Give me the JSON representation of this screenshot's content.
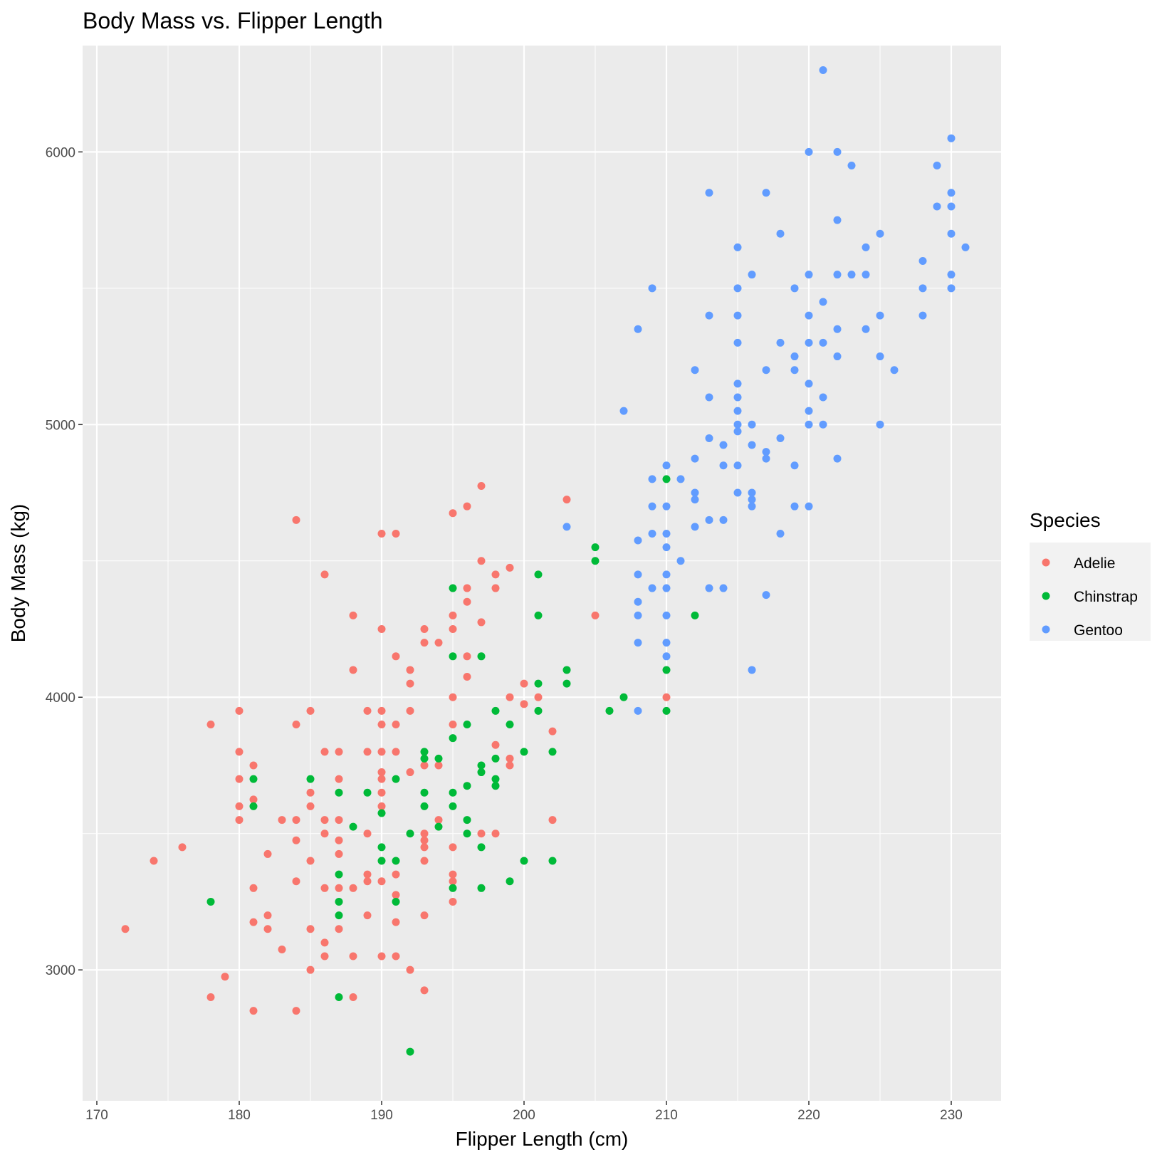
{
  "chart_data": {
    "type": "scatter",
    "title": "Body Mass vs. Flipper Length",
    "xlabel": "Flipper Length (cm)",
    "ylabel": "Body Mass (kg)",
    "xlim": [
      169,
      233.5
    ],
    "ylim": [
      2520,
      6390
    ],
    "x_ticks": [
      170,
      180,
      190,
      200,
      210,
      220,
      230
    ],
    "y_ticks": [
      3000,
      4000,
      5000,
      6000
    ],
    "grid": true,
    "legend_title": "Species",
    "legend_position": "right",
    "series": [
      {
        "name": "Adelie",
        "color": "#F8766D",
        "points": [
          [
            172,
            3150
          ],
          [
            174,
            3400
          ],
          [
            176,
            3450
          ],
          [
            178,
            2900
          ],
          [
            178,
            3900
          ],
          [
            179,
            2975
          ],
          [
            180,
            3550
          ],
          [
            180,
            3600
          ],
          [
            180,
            3700
          ],
          [
            180,
            3800
          ],
          [
            180,
            3950
          ],
          [
            181,
            2850
          ],
          [
            181,
            3175
          ],
          [
            181,
            3300
          ],
          [
            181,
            3625
          ],
          [
            181,
            3750
          ],
          [
            182,
            3150
          ],
          [
            182,
            3200
          ],
          [
            182,
            3425
          ],
          [
            183,
            3075
          ],
          [
            183,
            3550
          ],
          [
            184,
            2850
          ],
          [
            184,
            3325
          ],
          [
            184,
            3475
          ],
          [
            184,
            3550
          ],
          [
            184,
            3900
          ],
          [
            184,
            4650
          ],
          [
            185,
            3000
          ],
          [
            185,
            3150
          ],
          [
            185,
            3400
          ],
          [
            185,
            3600
          ],
          [
            185,
            3650
          ],
          [
            185,
            3950
          ],
          [
            186,
            3050
          ],
          [
            186,
            3100
          ],
          [
            186,
            3300
          ],
          [
            186,
            3500
          ],
          [
            186,
            3550
          ],
          [
            186,
            3800
          ],
          [
            186,
            4450
          ],
          [
            187,
            3150
          ],
          [
            187,
            3300
          ],
          [
            187,
            3425
          ],
          [
            187,
            3475
          ],
          [
            187,
            3550
          ],
          [
            187,
            3700
          ],
          [
            187,
            3800
          ],
          [
            188,
            2900
          ],
          [
            188,
            3050
          ],
          [
            188,
            3300
          ],
          [
            188,
            4100
          ],
          [
            188,
            4300
          ],
          [
            189,
            3200
          ],
          [
            189,
            3325
          ],
          [
            189,
            3350
          ],
          [
            189,
            3500
          ],
          [
            189,
            3800
          ],
          [
            189,
            3950
          ],
          [
            190,
            3050
          ],
          [
            190,
            3325
          ],
          [
            190,
            3600
          ],
          [
            190,
            3650
          ],
          [
            190,
            3700
          ],
          [
            190,
            3725
          ],
          [
            190,
            3800
          ],
          [
            190,
            3900
          ],
          [
            190,
            3950
          ],
          [
            190,
            4250
          ],
          [
            190,
            4600
          ],
          [
            191,
            3050
          ],
          [
            191,
            3175
          ],
          [
            191,
            3275
          ],
          [
            191,
            3350
          ],
          [
            191,
            3800
          ],
          [
            191,
            3900
          ],
          [
            191,
            4150
          ],
          [
            191,
            4600
          ],
          [
            192,
            3000
          ],
          [
            192,
            3725
          ],
          [
            192,
            3950
          ],
          [
            192,
            4050
          ],
          [
            192,
            4100
          ],
          [
            193,
            2925
          ],
          [
            193,
            3200
          ],
          [
            193,
            3400
          ],
          [
            193,
            3450
          ],
          [
            193,
            3475
          ],
          [
            193,
            3500
          ],
          [
            193,
            3750
          ],
          [
            193,
            4200
          ],
          [
            193,
            4250
          ],
          [
            194,
            3550
          ],
          [
            194,
            3750
          ],
          [
            194,
            4200
          ],
          [
            195,
            3250
          ],
          [
            195,
            3325
          ],
          [
            195,
            3350
          ],
          [
            195,
            3450
          ],
          [
            195,
            3900
          ],
          [
            195,
            4000
          ],
          [
            195,
            4250
          ],
          [
            195,
            4300
          ],
          [
            195,
            4675
          ],
          [
            196,
            4075
          ],
          [
            196,
            4150
          ],
          [
            196,
            4350
          ],
          [
            196,
            4400
          ],
          [
            196,
            4700
          ],
          [
            197,
            3500
          ],
          [
            197,
            4275
          ],
          [
            197,
            4500
          ],
          [
            197,
            4775
          ],
          [
            198,
            3500
          ],
          [
            198,
            3825
          ],
          [
            198,
            4400
          ],
          [
            198,
            4450
          ],
          [
            199,
            3750
          ],
          [
            199,
            3775
          ],
          [
            199,
            4000
          ],
          [
            199,
            4475
          ],
          [
            200,
            3975
          ],
          [
            200,
            4050
          ],
          [
            201,
            4000
          ],
          [
            202,
            3550
          ],
          [
            202,
            3875
          ],
          [
            203,
            4725
          ],
          [
            205,
            4300
          ],
          [
            210,
            4000
          ]
        ]
      },
      {
        "name": "Chinstrap",
        "color": "#00BA38",
        "points": [
          [
            178,
            3250
          ],
          [
            181,
            3600
          ],
          [
            181,
            3700
          ],
          [
            185,
            3700
          ],
          [
            187,
            2900
          ],
          [
            187,
            3200
          ],
          [
            187,
            3250
          ],
          [
            187,
            3350
          ],
          [
            187,
            3650
          ],
          [
            188,
            3525
          ],
          [
            189,
            3650
          ],
          [
            190,
            3400
          ],
          [
            190,
            3450
          ],
          [
            190,
            3575
          ],
          [
            191,
            3250
          ],
          [
            191,
            3400
          ],
          [
            191,
            3700
          ],
          [
            192,
            2700
          ],
          [
            192,
            3500
          ],
          [
            193,
            3600
          ],
          [
            193,
            3650
          ],
          [
            193,
            3775
          ],
          [
            193,
            3800
          ],
          [
            194,
            3525
          ],
          [
            194,
            3775
          ],
          [
            195,
            3300
          ],
          [
            195,
            3600
          ],
          [
            195,
            3650
          ],
          [
            195,
            3850
          ],
          [
            195,
            4150
          ],
          [
            195,
            4400
          ],
          [
            196,
            3500
          ],
          [
            196,
            3550
          ],
          [
            196,
            3675
          ],
          [
            196,
            3900
          ],
          [
            197,
            3300
          ],
          [
            197,
            3450
          ],
          [
            197,
            3725
          ],
          [
            197,
            3750
          ],
          [
            197,
            4150
          ],
          [
            198,
            3675
          ],
          [
            198,
            3700
          ],
          [
            198,
            3775
          ],
          [
            198,
            3950
          ],
          [
            199,
            3325
          ],
          [
            199,
            3900
          ],
          [
            200,
            3400
          ],
          [
            200,
            3800
          ],
          [
            201,
            3950
          ],
          [
            201,
            4050
          ],
          [
            201,
            4300
          ],
          [
            201,
            4450
          ],
          [
            202,
            3400
          ],
          [
            202,
            3800
          ],
          [
            203,
            4050
          ],
          [
            203,
            4100
          ],
          [
            205,
            4500
          ],
          [
            205,
            4550
          ],
          [
            206,
            3950
          ],
          [
            207,
            4000
          ],
          [
            210,
            3950
          ],
          [
            210,
            4100
          ],
          [
            210,
            4800
          ],
          [
            212,
            4300
          ]
        ]
      },
      {
        "name": "Gentoo",
        "color": "#619CFF",
        "points": [
          [
            203,
            4625
          ],
          [
            207,
            5050
          ],
          [
            208,
            3950
          ],
          [
            208,
            4200
          ],
          [
            208,
            4300
          ],
          [
            208,
            4350
          ],
          [
            208,
            4450
          ],
          [
            208,
            4575
          ],
          [
            208,
            5350
          ],
          [
            209,
            4400
          ],
          [
            209,
            4600
          ],
          [
            209,
            4700
          ],
          [
            209,
            4800
          ],
          [
            209,
            5500
          ],
          [
            210,
            4150
          ],
          [
            210,
            4200
          ],
          [
            210,
            4300
          ],
          [
            210,
            4400
          ],
          [
            210,
            4450
          ],
          [
            210,
            4550
          ],
          [
            210,
            4600
          ],
          [
            210,
            4700
          ],
          [
            210,
            4850
          ],
          [
            211,
            4500
          ],
          [
            211,
            4800
          ],
          [
            212,
            4625
          ],
          [
            212,
            4725
          ],
          [
            212,
            4750
          ],
          [
            212,
            4875
          ],
          [
            212,
            5200
          ],
          [
            213,
            4400
          ],
          [
            213,
            4650
          ],
          [
            213,
            4950
          ],
          [
            213,
            5100
          ],
          [
            213,
            5400
          ],
          [
            213,
            5850
          ],
          [
            214,
            4400
          ],
          [
            214,
            4650
          ],
          [
            214,
            4850
          ],
          [
            214,
            4925
          ],
          [
            215,
            4750
          ],
          [
            215,
            4850
          ],
          [
            215,
            4975
          ],
          [
            215,
            5000
          ],
          [
            215,
            5050
          ],
          [
            215,
            5100
          ],
          [
            215,
            5150
          ],
          [
            215,
            5300
          ],
          [
            215,
            5400
          ],
          [
            215,
            5500
          ],
          [
            215,
            5650
          ],
          [
            216,
            4100
          ],
          [
            216,
            4700
          ],
          [
            216,
            4725
          ],
          [
            216,
            4750
          ],
          [
            216,
            4925
          ],
          [
            216,
            5000
          ],
          [
            216,
            5550
          ],
          [
            217,
            4375
          ],
          [
            217,
            4875
          ],
          [
            217,
            4900
          ],
          [
            217,
            5200
          ],
          [
            217,
            5850
          ],
          [
            218,
            4600
          ],
          [
            218,
            4950
          ],
          [
            218,
            5300
          ],
          [
            218,
            5700
          ],
          [
            219,
            4700
          ],
          [
            219,
            4850
          ],
          [
            219,
            5200
          ],
          [
            219,
            5250
          ],
          [
            219,
            5500
          ],
          [
            220,
            4700
          ],
          [
            220,
            5000
          ],
          [
            220,
            5050
          ],
          [
            220,
            5150
          ],
          [
            220,
            5300
          ],
          [
            220,
            5400
          ],
          [
            220,
            5550
          ],
          [
            220,
            6000
          ],
          [
            221,
            5000
          ],
          [
            221,
            5100
          ],
          [
            221,
            5300
          ],
          [
            221,
            5450
          ],
          [
            221,
            6300
          ],
          [
            222,
            4875
          ],
          [
            222,
            5250
          ],
          [
            222,
            5350
          ],
          [
            222,
            5550
          ],
          [
            222,
            5750
          ],
          [
            222,
            6000
          ],
          [
            223,
            5550
          ],
          [
            223,
            5950
          ],
          [
            224,
            5350
          ],
          [
            224,
            5550
          ],
          [
            224,
            5650
          ],
          [
            225,
            5000
          ],
          [
            225,
            5250
          ],
          [
            225,
            5400
          ],
          [
            225,
            5700
          ],
          [
            226,
            5200
          ],
          [
            228,
            5400
          ],
          [
            228,
            5500
          ],
          [
            228,
            5600
          ],
          [
            229,
            5800
          ],
          [
            229,
            5950
          ],
          [
            230,
            5500
          ],
          [
            230,
            5550
          ],
          [
            230,
            5700
          ],
          [
            230,
            5800
          ],
          [
            230,
            5850
          ],
          [
            230,
            6050
          ],
          [
            231,
            5650
          ]
        ]
      }
    ]
  }
}
